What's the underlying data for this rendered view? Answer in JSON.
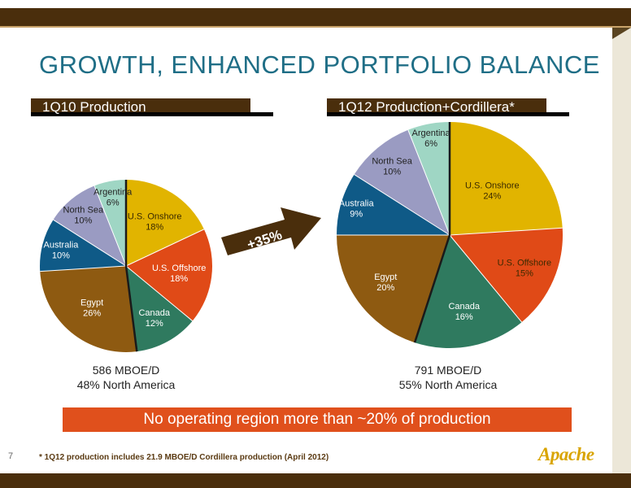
{
  "page": {
    "title": "GROWTH, ENHANCED PORTFOLIO BALANCE",
    "page_number": "7",
    "footnote": "* 1Q12 production includes 21.9 MBOE/D Cordillera production (April 2012)",
    "logo_text": "Apache",
    "banner": "No operating region more than ~20% of production",
    "arrow_label": "+35%"
  },
  "chart_data": [
    {
      "type": "pie",
      "title": "1Q10 Production",
      "summary_line1": "586 MBOE/D",
      "summary_line2": "48% North America",
      "slices": [
        {
          "name": "U.S. Onshore",
          "value": 18,
          "label": "18%",
          "color": "#e1b400"
        },
        {
          "name": "U.S. Offshore",
          "value": 18,
          "label": "18%",
          "color": "#e04a17"
        },
        {
          "name": "Canada",
          "value": 12,
          "label": "12%",
          "color": "#2f7a5f"
        },
        {
          "name": "Egypt",
          "value": 26,
          "label": "26%",
          "color": "#8e5a11"
        },
        {
          "name": "Australia",
          "value": 10,
          "label": "10%",
          "color": "#0f5a87"
        },
        {
          "name": "North Sea",
          "value": 10,
          "label": "10%",
          "color": "#9a9bc2"
        },
        {
          "name": "Argentina",
          "value": 6,
          "label": "6%",
          "color": "#9fd6c4"
        }
      ]
    },
    {
      "type": "pie",
      "title": "1Q12 Production+Cordillera*",
      "summary_line1": "791 MBOE/D",
      "summary_line2": "55% North America",
      "slices": [
        {
          "name": "U.S. Onshore",
          "value": 24,
          "label": "24%",
          "color": "#e1b400"
        },
        {
          "name": "U.S. Offshore",
          "value": 15,
          "label": "15%",
          "color": "#e04a17"
        },
        {
          "name": "Canada",
          "value": 16,
          "label": "16%",
          "color": "#2f7a5f"
        },
        {
          "name": "Egypt",
          "value": 20,
          "label": "20%",
          "color": "#8e5a11"
        },
        {
          "name": "Australia",
          "value": 9,
          "label": "9%",
          "color": "#0f5a87"
        },
        {
          "name": "North Sea",
          "value": 10,
          "label": "10%",
          "color": "#9a9bc2"
        },
        {
          "name": "Argentina",
          "value": 6,
          "label": "6%",
          "color": "#9fd6c4"
        }
      ]
    }
  ],
  "colors": {
    "title": "#1f6e86",
    "band": "#4a2e0c",
    "banner": "#e0501c",
    "arrow": "#4a2e0c",
    "logo": "#d9a400"
  }
}
